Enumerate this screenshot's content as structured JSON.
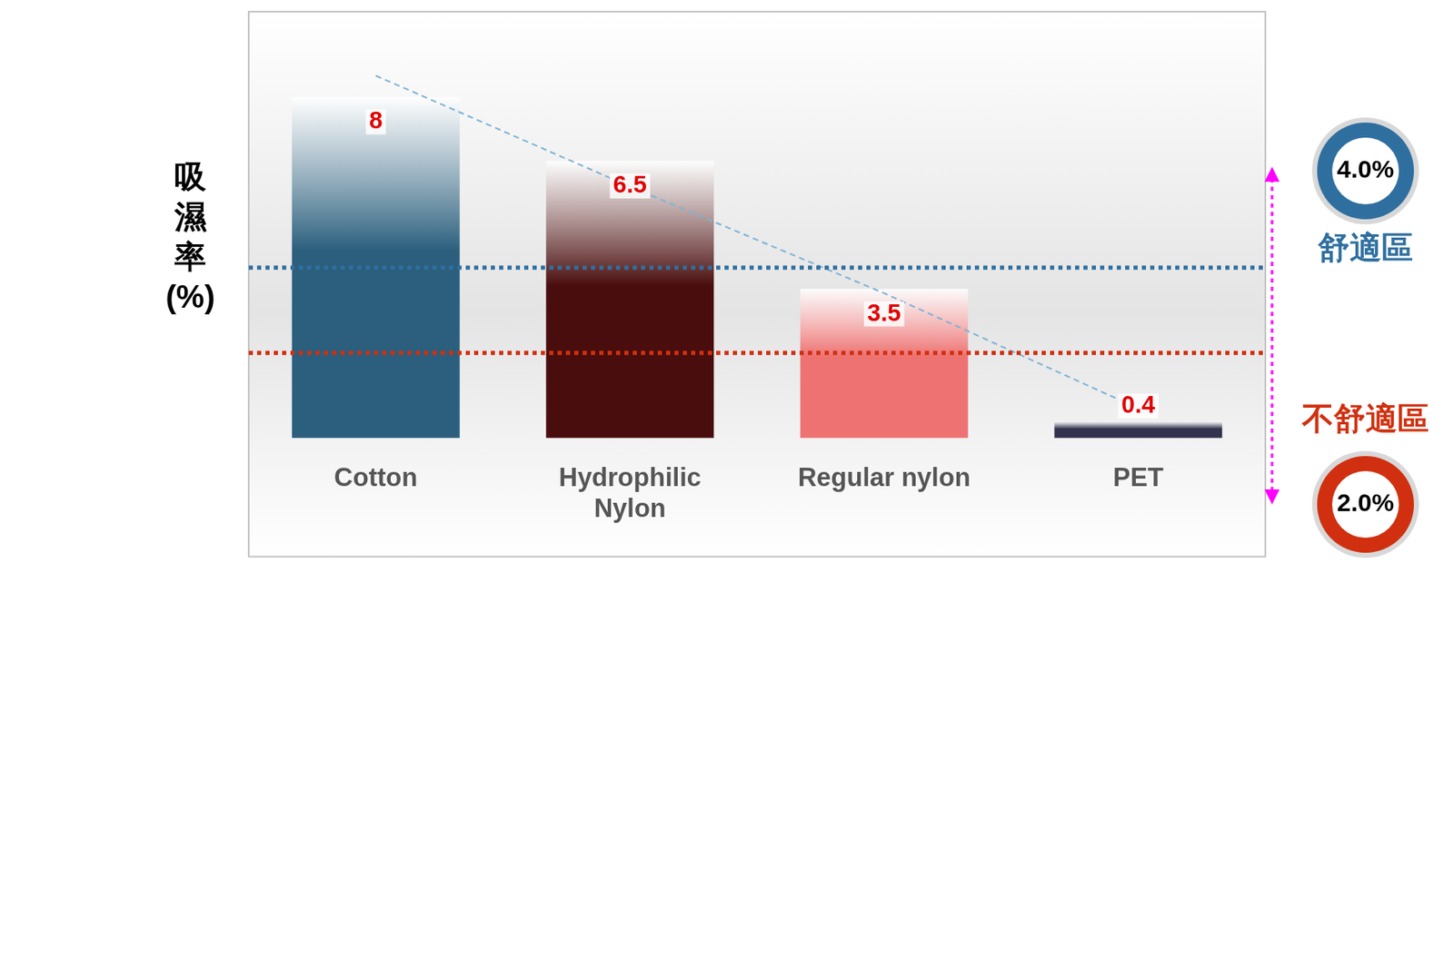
{
  "chart_data": {
    "type": "bar",
    "y_label": "吸濕率(%)",
    "categories": [
      "Cotton",
      "Hydrophilic Nylon",
      "Regular nylon",
      "PET"
    ],
    "ylim": [
      0,
      10
    ],
    "tick_labels": "x",
    "grid": false,
    "series": [
      {
        "type": "bar",
        "values": [
          8,
          6.5,
          3.5,
          0.4
        ],
        "colors": [
          "#2b5f7d",
          "#4a0d0d",
          "#ee7272",
          "#33334f"
        ],
        "data_labels": true
      },
      {
        "type": "line",
        "line_style": "dashed",
        "color": "#7fb3d5",
        "values": [
          8.5,
          5.9,
          3.4,
          0.7
        ]
      }
    ],
    "reference_lines": [
      {
        "value": 4.0,
        "label": "4.0%",
        "zone": "舒適區",
        "color": "#2f6f9f",
        "line_style": "dotted"
      },
      {
        "value": 2.0,
        "label": "2.0%",
        "zone": "不舒適區",
        "color": "#d0300f",
        "line_style": "dotted"
      }
    ]
  }
}
